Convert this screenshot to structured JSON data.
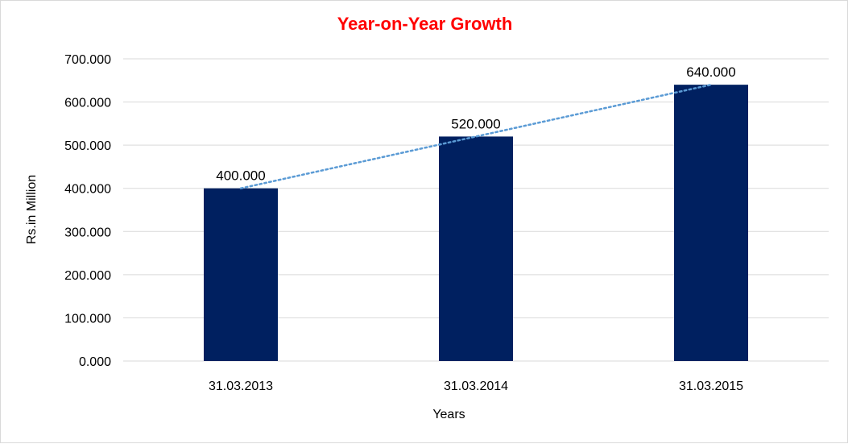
{
  "chart_data": {
    "type": "bar",
    "title": "Year-on-Year Growth",
    "xlabel": "Years",
    "ylabel": "Rs.in Million",
    "categories": [
      "31.03.2013",
      "31.03.2014",
      "31.03.2015"
    ],
    "values": [
      400,
      520,
      640
    ],
    "value_labels": [
      "400.000",
      "520.000",
      "640.000"
    ],
    "ylim": [
      0,
      700
    ],
    "yticks": [
      0,
      100,
      200,
      300,
      400,
      500,
      600,
      700
    ],
    "ytick_labels": [
      "0.000",
      "100.000",
      "200.000",
      "300.000",
      "400.000",
      "500.000",
      "600.000",
      "700.000"
    ],
    "grid": true,
    "trendline": "linear-dotted",
    "colors": {
      "bar": "#002060",
      "trendline": "#5B9BD5",
      "title": "#FF0000",
      "grid": "#d9d9d9"
    }
  }
}
